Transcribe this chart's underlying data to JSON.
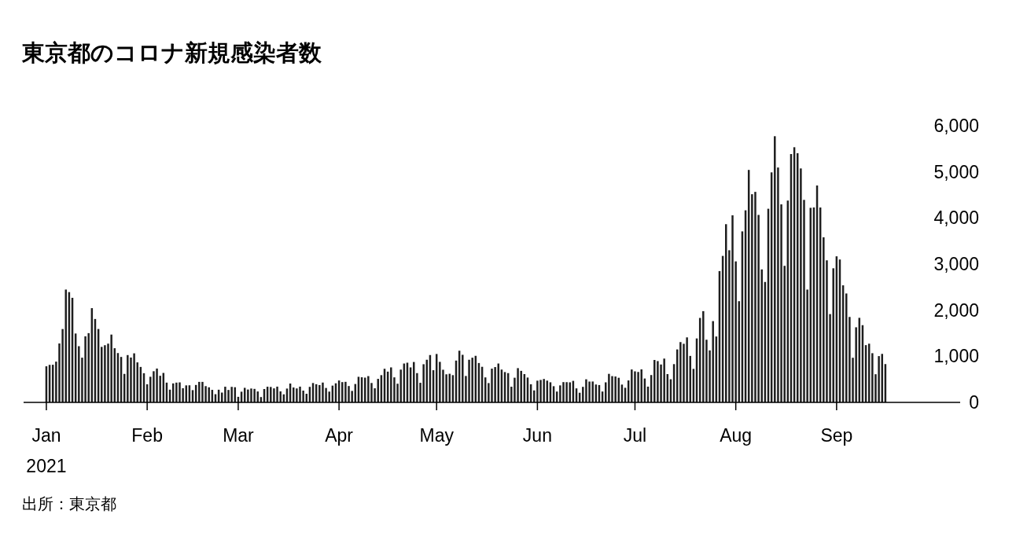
{
  "chart_data": {
    "type": "bar",
    "title": "東京都のコロナ新規感染者数",
    "annotations": [
      "出所：東京都"
    ],
    "color": "#1e1e1e",
    "xlim": [
      "2020-12-25",
      "2021-10-09"
    ],
    "ylim": [
      0,
      6000
    ],
    "yticks": [
      0,
      {
        "value": 1000,
        "label": "1,000"
      },
      {
        "value": 2000,
        "label": "2,000"
      },
      {
        "value": 3000,
        "label": "3,000"
      },
      {
        "value": 4000,
        "label": "4,000"
      },
      {
        "value": 5000,
        "label": "5,000"
      },
      {
        "value": 6000,
        "label": "6,000"
      }
    ],
    "xticks": [
      {
        "value": "2021-01-01",
        "label": "Jan\n2021"
      },
      {
        "value": "2021-02-01",
        "label": "Feb"
      },
      {
        "value": "2021-03-01",
        "label": "Mar"
      },
      {
        "value": "2021-04-01",
        "label": "Apr"
      },
      {
        "value": "2021-05-01",
        "label": "May"
      },
      {
        "value": "2021-06-01",
        "label": "Jun"
      },
      {
        "value": "2021-07-01",
        "label": "Jul"
      },
      {
        "value": "2021-08-01",
        "label": "Aug"
      },
      {
        "value": "2021-09-01",
        "label": "Sep"
      }
    ],
    "x": [
      "2021-01-01",
      "2021-01-02",
      "2021-01-03",
      "2021-01-04",
      "2021-01-05",
      "2021-01-06",
      "2021-01-07",
      "2021-01-08",
      "2021-01-09",
      "2021-01-10",
      "2021-01-11",
      "2021-01-12",
      "2021-01-13",
      "2021-01-14",
      "2021-01-15",
      "2021-01-16",
      "2021-01-17",
      "2021-01-18",
      "2021-01-19",
      "2021-01-20",
      "2021-01-21",
      "2021-01-22",
      "2021-01-23",
      "2021-01-24",
      "2021-01-25",
      "2021-01-26",
      "2021-01-27",
      "2021-01-28",
      "2021-01-29",
      "2021-01-30",
      "2021-01-31",
      "2021-02-01",
      "2021-02-02",
      "2021-02-03",
      "2021-02-04",
      "2021-02-05",
      "2021-02-06",
      "2021-02-07",
      "2021-02-08",
      "2021-02-09",
      "2021-02-10",
      "2021-02-11",
      "2021-02-12",
      "2021-02-13",
      "2021-02-14",
      "2021-02-15",
      "2021-02-16",
      "2021-02-17",
      "2021-02-18",
      "2021-02-19",
      "2021-02-20",
      "2021-02-21",
      "2021-02-22",
      "2021-02-23",
      "2021-02-24",
      "2021-02-25",
      "2021-02-26",
      "2021-02-27",
      "2021-02-28",
      "2021-03-01",
      "2021-03-02",
      "2021-03-03",
      "2021-03-04",
      "2021-03-05",
      "2021-03-06",
      "2021-03-07",
      "2021-03-08",
      "2021-03-09",
      "2021-03-10",
      "2021-03-11",
      "2021-03-12",
      "2021-03-13",
      "2021-03-14",
      "2021-03-15",
      "2021-03-16",
      "2021-03-17",
      "2021-03-18",
      "2021-03-19",
      "2021-03-20",
      "2021-03-21",
      "2021-03-22",
      "2021-03-23",
      "2021-03-24",
      "2021-03-25",
      "2021-03-26",
      "2021-03-27",
      "2021-03-28",
      "2021-03-29",
      "2021-03-30",
      "2021-03-31",
      "2021-04-01",
      "2021-04-02",
      "2021-04-03",
      "2021-04-04",
      "2021-04-05",
      "2021-04-06",
      "2021-04-07",
      "2021-04-08",
      "2021-04-09",
      "2021-04-10",
      "2021-04-11",
      "2021-04-12",
      "2021-04-13",
      "2021-04-14",
      "2021-04-15",
      "2021-04-16",
      "2021-04-17",
      "2021-04-18",
      "2021-04-19",
      "2021-04-20",
      "2021-04-21",
      "2021-04-22",
      "2021-04-23",
      "2021-04-24",
      "2021-04-25",
      "2021-04-26",
      "2021-04-27",
      "2021-04-28",
      "2021-04-29",
      "2021-04-30",
      "2021-05-01",
      "2021-05-02",
      "2021-05-03",
      "2021-05-04",
      "2021-05-05",
      "2021-05-06",
      "2021-05-07",
      "2021-05-08",
      "2021-05-09",
      "2021-05-10",
      "2021-05-11",
      "2021-05-12",
      "2021-05-13",
      "2021-05-14",
      "2021-05-15",
      "2021-05-16",
      "2021-05-17",
      "2021-05-18",
      "2021-05-19",
      "2021-05-20",
      "2021-05-21",
      "2021-05-22",
      "2021-05-23",
      "2021-05-24",
      "2021-05-25",
      "2021-05-26",
      "2021-05-27",
      "2021-05-28",
      "2021-05-29",
      "2021-05-30",
      "2021-05-31",
      "2021-06-01",
      "2021-06-02",
      "2021-06-03",
      "2021-06-04",
      "2021-06-05",
      "2021-06-06",
      "2021-06-07",
      "2021-06-08",
      "2021-06-09",
      "2021-06-10",
      "2021-06-11",
      "2021-06-12",
      "2021-06-13",
      "2021-06-14",
      "2021-06-15",
      "2021-06-16",
      "2021-06-17",
      "2021-06-18",
      "2021-06-19",
      "2021-06-20",
      "2021-06-21",
      "2021-06-22",
      "2021-06-23",
      "2021-06-24",
      "2021-06-25",
      "2021-06-26",
      "2021-06-27",
      "2021-06-28",
      "2021-06-29",
      "2021-06-30",
      "2021-07-01",
      "2021-07-02",
      "2021-07-03",
      "2021-07-04",
      "2021-07-05",
      "2021-07-06",
      "2021-07-07",
      "2021-07-08",
      "2021-07-09",
      "2021-07-10",
      "2021-07-11",
      "2021-07-12",
      "2021-07-13",
      "2021-07-14",
      "2021-07-15",
      "2021-07-16",
      "2021-07-17",
      "2021-07-18",
      "2021-07-19",
      "2021-07-20",
      "2021-07-21",
      "2021-07-22",
      "2021-07-23",
      "2021-07-24",
      "2021-07-25",
      "2021-07-26",
      "2021-07-27",
      "2021-07-28",
      "2021-07-29",
      "2021-07-30",
      "2021-07-31",
      "2021-08-01",
      "2021-08-02",
      "2021-08-03",
      "2021-08-04",
      "2021-08-05",
      "2021-08-06",
      "2021-08-07",
      "2021-08-08",
      "2021-08-09",
      "2021-08-10",
      "2021-08-11",
      "2021-08-12",
      "2021-08-13",
      "2021-08-14",
      "2021-08-15",
      "2021-08-16",
      "2021-08-17",
      "2021-08-18",
      "2021-08-19",
      "2021-08-20",
      "2021-08-21",
      "2021-08-22",
      "2021-08-23",
      "2021-08-24",
      "2021-08-25",
      "2021-08-26",
      "2021-08-27",
      "2021-08-28",
      "2021-08-29",
      "2021-08-30",
      "2021-08-31",
      "2021-09-01",
      "2021-09-02",
      "2021-09-03",
      "2021-09-04",
      "2021-09-05",
      "2021-09-06",
      "2021-09-07",
      "2021-09-08",
      "2021-09-09",
      "2021-09-10",
      "2021-09-11",
      "2021-09-12",
      "2021-09-13",
      "2021-09-14",
      "2021-09-15",
      "2021-09-16"
    ],
    "values": [
      783,
      814,
      816,
      884,
      1278,
      1591,
      2447,
      2392,
      2268,
      1494,
      1219,
      970,
      1433,
      1502,
      2044,
      1809,
      1592,
      1204,
      1240,
      1274,
      1471,
      1175,
      1070,
      986,
      618,
      1026,
      973,
      1064,
      868,
      769,
      633,
      393,
      556,
      676,
      734,
      577,
      639,
      429,
      276,
      412,
      429,
      434,
      307,
      369,
      371,
      266,
      378,
      445,
      445,
      353,
      327,
      272,
      178,
      275,
      213,
      340,
      270,
      337,
      329,
      121,
      232,
      316,
      279,
      301,
      293,
      237,
      116,
      290,
      340,
      335,
      304,
      342,
      239,
      175,
      300,
      409,
      323,
      303,
      342,
      256,
      187,
      337,
      420,
      394,
      376,
      430,
      313,
      234,
      364,
      414,
      475,
      440,
      446,
      355,
      249,
      399,
      555,
      545,
      537,
      570,
      421,
      306,
      510,
      591,
      729,
      667,
      759,
      543,
      405,
      711,
      843,
      861,
      759,
      876,
      635,
      425,
      828,
      925,
      1027,
      698,
      1050,
      879,
      708,
      609,
      621,
      591,
      907,
      1121,
      1032,
      573,
      925,
      969,
      1010,
      854,
      772,
      542,
      419,
      732,
      766,
      843,
      712,
      658,
      635,
      340,
      535,
      743,
      684,
      614,
      539,
      393,
      260,
      471,
      487,
      508,
      472,
      436,
      351,
      235,
      369,
      440,
      439,
      435,
      467,
      304,
      209,
      337,
      501,
      452,
      453,
      388,
      376,
      236,
      435,
      619,
      570,
      562,
      534,
      386,
      317,
      476,
      714,
      673,
      660,
      716,
      518,
      342,
      593,
      920,
      896,
      822,
      950,
      614,
      502,
      830,
      1149,
      1308,
      1271,
      1410,
      1008,
      727,
      1387,
      1832,
      1979,
      1359,
      1128,
      1763,
      1429,
      2848,
      3177,
      3865,
      3300,
      4058,
      3058,
      2195,
      3709,
      4166,
      5042,
      4515,
      4566,
      4066,
      2884,
      2612,
      4200,
      4989,
      5773,
      5094,
      4295,
      2962,
      4377,
      5386,
      5534,
      5405,
      5074,
      4392,
      2447,
      4220,
      4228,
      4704,
      4227,
      3581,
      3081,
      1915,
      2909,
      3168,
      3099,
      2539,
      2362,
      1853,
      968,
      1629,
      1834,
      1675,
      1242,
      1273,
      1067,
      611,
      1004,
      1052,
      831
    ]
  }
}
